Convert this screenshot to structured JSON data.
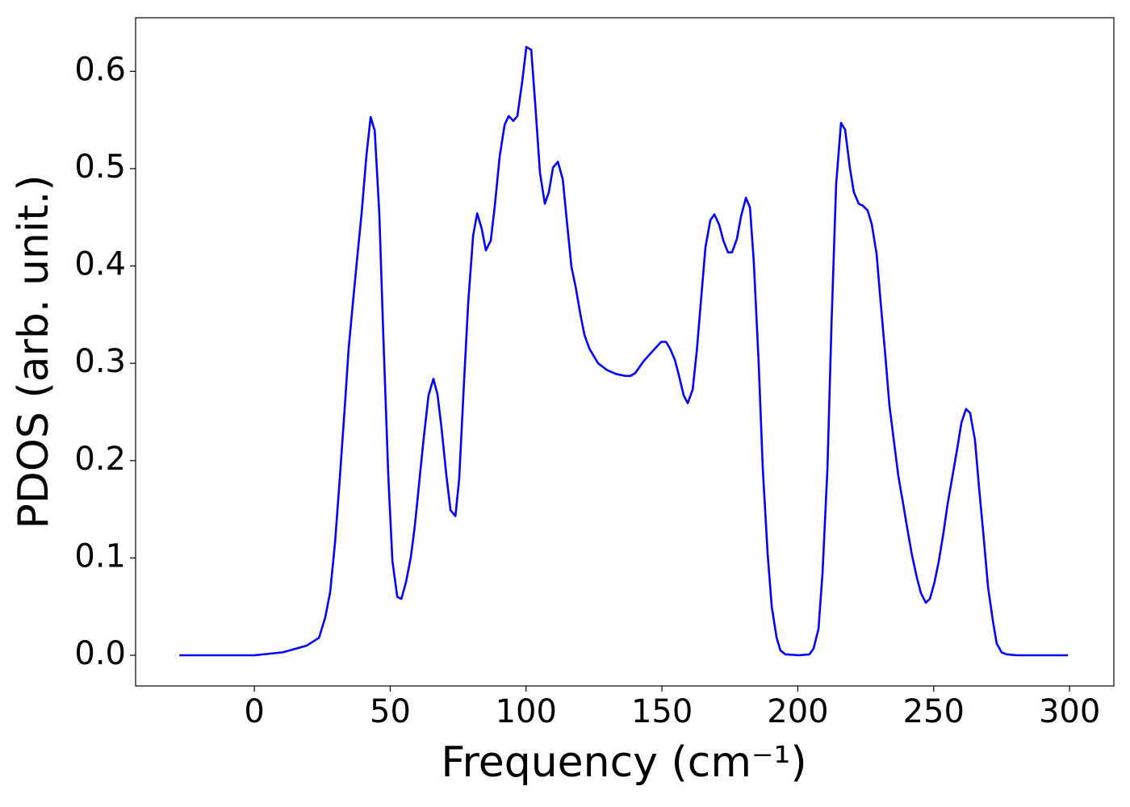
{
  "chart_data": {
    "type": "line",
    "xlabel": "Frequency (cm⁻¹)",
    "ylabel": "PDOS (arb. unit.)",
    "color": "#0000ff",
    "xlim": [
      -43.7,
      316.3
    ],
    "ylim": [
      -0.0315,
      0.655
    ],
    "xticks": [
      0,
      50,
      100,
      150,
      200,
      250,
      300
    ],
    "yticks": [
      {
        "value": 0,
        "label": "0.0"
      },
      0.1,
      0.2,
      0.3,
      0.4,
      0.5,
      0.6
    ],
    "grid": false,
    "x": [
      -27.6,
      0,
      10.4,
      19.3,
      23.8,
      26.1,
      27.9,
      29.7,
      31.5,
      33.3,
      34.7,
      36.2,
      37.7,
      39.5,
      41.3,
      42.8,
      44.3,
      46.0,
      47.5,
      49.3,
      50.8,
      52.6,
      54.1,
      55.8,
      57.6,
      59.1,
      60.9,
      62.4,
      64.1,
      65.9,
      67.4,
      68.9,
      70.7,
      72.2,
      74.0,
      75.4,
      77.2,
      78.7,
      80.5,
      82.0,
      83.7,
      85.2,
      87.0,
      88.5,
      90.3,
      92.1,
      93.6,
      95.3,
      96.8,
      98.6,
      100.1,
      101.9,
      103.4,
      105.1,
      106.9,
      108.4,
      109.9,
      111.7,
      113.5,
      114.9,
      116.7,
      118.2,
      120.0,
      121.5,
      123.3,
      126.5,
      129.8,
      133.1,
      136.6,
      138.4,
      140.2,
      143.2,
      146.4,
      149.7,
      151.5,
      153.0,
      154.7,
      156.2,
      158.0,
      159.5,
      161.3,
      162.8,
      164.5,
      166.0,
      167.8,
      169.3,
      171.1,
      172.6,
      174.3,
      175.8,
      177.6,
      179.1,
      180.9,
      182.4,
      183.8,
      185.6,
      187.1,
      188.9,
      190.4,
      192.2,
      193.6,
      195.4,
      200.5,
      204.3,
      205.8,
      207.6,
      209.1,
      210.9,
      212.4,
      214.1,
      215.9,
      217.4,
      219.2,
      220.6,
      222.4,
      223.9,
      225.7,
      227.2,
      229.0,
      230.5,
      232.2,
      233.7,
      235.5,
      237.0,
      238.8,
      240.3,
      242.0,
      243.8,
      245.3,
      247.1,
      248.6,
      250.3,
      251.9,
      253.6,
      255.1,
      256.9,
      258.7,
      260.2,
      261.9,
      263.4,
      265.2,
      266.7,
      268.5,
      270.0,
      271.8,
      273.2,
      275.0,
      276.8,
      280.6,
      299.4
    ],
    "values": [
      0,
      0,
      0.003,
      0.01,
      0.018,
      0.039,
      0.065,
      0.116,
      0.184,
      0.256,
      0.315,
      0.36,
      0.404,
      0.455,
      0.515,
      0.553,
      0.539,
      0.453,
      0.325,
      0.184,
      0.097,
      0.06,
      0.058,
      0.075,
      0.101,
      0.134,
      0.184,
      0.225,
      0.267,
      0.284,
      0.268,
      0.233,
      0.184,
      0.149,
      0.143,
      0.182,
      0.283,
      0.362,
      0.431,
      0.454,
      0.438,
      0.416,
      0.426,
      0.462,
      0.513,
      0.545,
      0.554,
      0.549,
      0.554,
      0.59,
      0.625,
      0.622,
      0.565,
      0.496,
      0.464,
      0.476,
      0.501,
      0.507,
      0.489,
      0.449,
      0.399,
      0.379,
      0.35,
      0.329,
      0.315,
      0.3,
      0.293,
      0.289,
      0.287,
      0.287,
      0.29,
      0.302,
      0.312,
      0.322,
      0.322,
      0.315,
      0.304,
      0.288,
      0.267,
      0.259,
      0.273,
      0.312,
      0.369,
      0.419,
      0.447,
      0.453,
      0.442,
      0.426,
      0.414,
      0.414,
      0.428,
      0.451,
      0.47,
      0.46,
      0.404,
      0.3,
      0.192,
      0.104,
      0.05,
      0.018,
      0.005,
      0.001,
      0,
      0.001,
      0.007,
      0.027,
      0.085,
      0.192,
      0.341,
      0.484,
      0.547,
      0.54,
      0.5,
      0.476,
      0.464,
      0.462,
      0.457,
      0.443,
      0.412,
      0.362,
      0.308,
      0.257,
      0.217,
      0.184,
      0.155,
      0.13,
      0.103,
      0.08,
      0.064,
      0.054,
      0.058,
      0.075,
      0.097,
      0.126,
      0.155,
      0.184,
      0.213,
      0.239,
      0.253,
      0.249,
      0.221,
      0.172,
      0.118,
      0.07,
      0.035,
      0.012,
      0.003,
      0.001,
      0,
      0
    ]
  }
}
